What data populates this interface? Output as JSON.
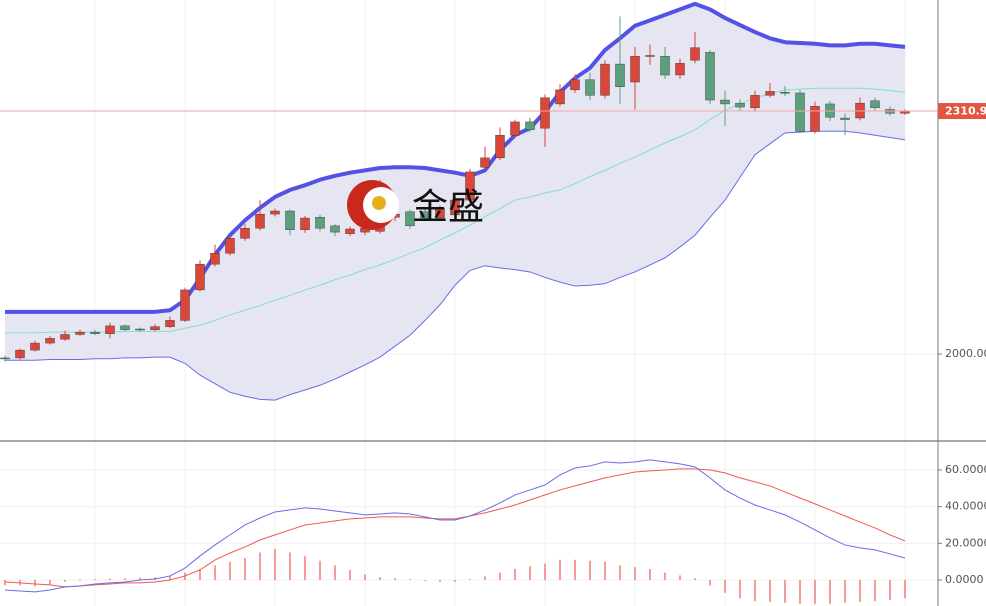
{
  "watermark": "金盛",
  "chart_data": [
    {
      "type": "candlestick",
      "open": [
        1995,
        1995,
        2005,
        2014,
        2019,
        2025,
        2028,
        2026,
        2036,
        2032,
        2031,
        2035,
        2043,
        2082,
        2115,
        2129,
        2148,
        2161,
        2179,
        2183,
        2159,
        2175,
        2164,
        2154,
        2156,
        2157,
        2175,
        2182,
        2182,
        2174,
        2178,
        2197,
        2239,
        2251,
        2280,
        2297,
        2289,
        2320,
        2338,
        2351,
        2331,
        2371,
        2348,
        2381,
        2381,
        2357,
        2376,
        2386,
        2325,
        2321,
        2315,
        2331,
        2335,
        2334,
        2285,
        2320,
        2302,
        2302,
        2324,
        2313,
        2308
      ],
      "high": [
        1998,
        2007,
        2017,
        2023,
        2030,
        2031,
        2031,
        2040,
        2038,
        2034,
        2038,
        2048,
        2085,
        2120,
        2140,
        2152,
        2166,
        2197,
        2186,
        2185,
        2177,
        2178,
        2166,
        2163,
        2166,
        2223,
        2190,
        2185,
        2186,
        2190,
        2200,
        2237,
        2265,
        2290,
        2300,
        2302,
        2332,
        2345,
        2358,
        2360,
        2376,
        2432,
        2393,
        2396,
        2393,
        2378,
        2412,
        2389,
        2337,
        2326,
        2337,
        2347,
        2343,
        2338,
        2323,
        2324,
        2308,
        2328,
        2328,
        2317,
        2313
      ],
      "low": [
        1990,
        1993,
        2003,
        2012,
        2017,
        2023,
        2024,
        2020,
        2029,
        2029,
        2029,
        2033,
        2041,
        2080,
        2112,
        2126,
        2145,
        2158,
        2176,
        2152,
        2155,
        2157,
        2151,
        2151,
        2152,
        2154,
        2170,
        2160,
        2170,
        2171,
        2175,
        2195,
        2236,
        2248,
        2276,
        2284,
        2265,
        2317,
        2334,
        2325,
        2327,
        2320,
        2313,
        2370,
        2352,
        2352,
        2372,
        2320,
        2292,
        2312,
        2310,
        2328,
        2330,
        2283,
        2282,
        2298,
        2280,
        2299,
        2312,
        2305,
        2306
      ],
      "close": [
        1994,
        2005,
        2014,
        2020,
        2025,
        2028,
        2026,
        2036,
        2031,
        2031,
        2035,
        2043,
        2082,
        2115,
        2129,
        2148,
        2161,
        2179,
        2183,
        2159,
        2174,
        2161,
        2156,
        2160,
        2161,
        2187,
        2179,
        2164,
        2174,
        2187,
        2197,
        2233,
        2251,
        2280,
        2297,
        2287,
        2328,
        2338,
        2351,
        2331,
        2371,
        2342,
        2381,
        2382,
        2357,
        2372,
        2392,
        2325,
        2320,
        2316,
        2331,
        2336,
        2334,
        2285,
        2317,
        2303,
        2300,
        2321,
        2315,
        2308,
        2310.92
      ],
      "up_color": "#d9473b",
      "down_color": "#5c9f7c",
      "bands": {
        "upper": [
          2054,
          2054,
          2054,
          2054,
          2054,
          2054,
          2054,
          2054,
          2054,
          2054,
          2054,
          2056,
          2069,
          2097,
          2127,
          2152,
          2171,
          2187,
          2201,
          2210,
          2216,
          2223,
          2228,
          2232,
          2235,
          2238,
          2239,
          2239,
          2238,
          2235,
          2232,
          2228,
          2235,
          2261,
          2280,
          2289,
          2310,
          2335,
          2353,
          2366,
          2389,
          2404,
          2420,
          2427,
          2434,
          2441,
          2448,
          2441,
          2430,
          2421,
          2412,
          2404,
          2399,
          2398,
          2397,
          2395,
          2395,
          2397,
          2397,
          2395,
          2393
        ],
        "middle": [
          2027,
          2027,
          2027,
          2028,
          2028,
          2028,
          2028,
          2028,
          2029,
          2029,
          2029,
          2029,
          2033,
          2037,
          2043,
          2050,
          2056,
          2062,
          2069,
          2075,
          2082,
          2088,
          2095,
          2101,
          2108,
          2114,
          2121,
          2129,
          2136,
          2146,
          2155,
          2165,
          2176,
          2186,
          2197,
          2201,
          2206,
          2210,
          2218,
          2227,
          2235,
          2244,
          2252,
          2261,
          2270,
          2278,
          2287,
          2300,
          2312,
          2320,
          2328,
          2333,
          2338,
          2339,
          2340,
          2340,
          2340,
          2340,
          2339,
          2337,
          2335
        ],
        "lower": [
          1992,
          1992,
          1992,
          1993,
          1993,
          1993,
          1994,
          1994,
          1995,
          1995,
          1996,
          1996,
          1988,
          1973,
          1962,
          1951,
          1946,
          1942,
          1941,
          1948,
          1954,
          1960,
          1968,
          1977,
          1986,
          1996,
          2010,
          2024,
          2043,
          2063,
          2088,
          2107,
          2113,
          2110,
          2108,
          2105,
          2098,
          2092,
          2087,
          2088,
          2090,
          2098,
          2105,
          2114,
          2123,
          2137,
          2152,
          2175,
          2197,
          2226,
          2255,
          2269,
          2283,
          2284,
          2285,
          2285,
          2285,
          2283,
          2280,
          2277,
          2274
        ],
        "upper_color": "#5252e6",
        "middle_color": "#86dccb",
        "lower_color": "#6b6bea",
        "fill": "#e6e6f3"
      },
      "ylim": [
        1888.7,
        2453
      ],
      "yticks": [
        {
          "value": 2000,
          "label": "2000.00"
        }
      ],
      "last_price": {
        "value": 2310.92,
        "label": "2310.92"
      },
      "last_price_color": "#e2553f"
    },
    {
      "type": "macd",
      "dif": {
        "color": "#6b6bea",
        "values": [
          -5.5,
          -6.0,
          -6.5,
          -5.5,
          -3.8,
          -3.3,
          -2.2,
          -1.6,
          -1.1,
          0,
          0.5,
          2.2,
          6.5,
          13.1,
          19.1,
          24.6,
          30.0,
          33.8,
          37.1,
          38.2,
          39.3,
          38.7,
          37.6,
          36.6,
          35.5,
          36.0,
          36.6,
          36.0,
          34.4,
          32.7,
          32.7,
          34.9,
          38.2,
          42.0,
          46.4,
          49.1,
          51.8,
          57.3,
          61.1,
          62.2,
          64.4,
          63.8,
          64.4,
          65.5,
          64.4,
          63.3,
          61.7,
          55.7,
          49.1,
          44.7,
          40.9,
          38.2,
          35.5,
          31.6,
          27.3,
          22.9,
          19.1,
          17.5,
          16.4,
          14.2,
          12.0
        ]
      },
      "dea": {
        "color": "#ef5a50",
        "values": [
          -1.1,
          -1.6,
          -2.2,
          -2.7,
          -3.8,
          -3.3,
          -2.7,
          -2.2,
          -1.6,
          -1.6,
          -1.1,
          0,
          2.2,
          5.5,
          10.9,
          14.7,
          18.0,
          21.8,
          24.6,
          27.3,
          30.0,
          31.1,
          32.2,
          33.3,
          33.8,
          34.4,
          34.4,
          34.4,
          33.8,
          33.3,
          33.3,
          34.9,
          36.6,
          38.7,
          40.9,
          43.6,
          46.4,
          49.1,
          51.3,
          53.5,
          55.7,
          57.3,
          58.9,
          59.5,
          60.0,
          60.6,
          60.6,
          60.0,
          58.4,
          55.7,
          53.5,
          51.3,
          48.0,
          44.7,
          41.5,
          38.2,
          34.9,
          31.6,
          28.4,
          24.6,
          21.3
        ]
      },
      "histogram": {
        "color": "#ef5a50",
        "values": [
          -3,
          -3,
          -3.5,
          -2.5,
          -1,
          0.5,
          0.5,
          0.8,
          1,
          1.2,
          1.5,
          2.5,
          4,
          6,
          8,
          10,
          12,
          15,
          17,
          15,
          13,
          10.5,
          8,
          5.5,
          3,
          1.5,
          1,
          0.5,
          -0.5,
          -1,
          -1,
          0.5,
          2,
          4,
          6,
          7.5,
          9,
          11,
          11,
          10.5,
          10,
          8,
          7,
          6,
          4,
          2.5,
          1,
          -3,
          -7,
          -10,
          -11.5,
          -12,
          -12.5,
          -13,
          -13,
          -13,
          -12.5,
          -12,
          -11.5,
          -11,
          -10
        ]
      },
      "ylim": [
        -14.2,
        75.8
      ],
      "yticks": [
        {
          "value": 0,
          "label": "0.0000"
        },
        {
          "value": 20,
          "label": "20.0000"
        },
        {
          "value": 40,
          "label": "40.0000"
        },
        {
          "value": 60,
          "label": "60.0000"
        }
      ]
    }
  ]
}
